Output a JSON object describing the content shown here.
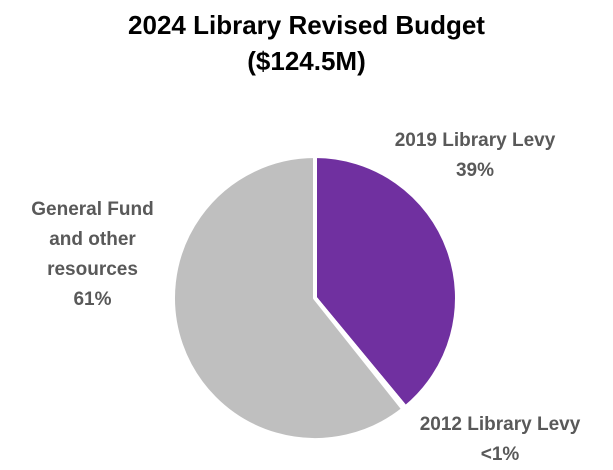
{
  "title": {
    "line1": "2024 Library Revised Budget",
    "line2": "($124.5M)"
  },
  "chart_data": {
    "type": "pie",
    "title": "2024 Library Revised Budget ($124.5M)",
    "slices": [
      {
        "name": "2019 Library Levy",
        "value": 39,
        "label": "39%",
        "color": "#7030A0"
      },
      {
        "name": "2012 Library Levy",
        "value": 0.3,
        "label": "<1%",
        "color": "#7F7F7F"
      },
      {
        "name": "General Fund and other resources",
        "value": 60.7,
        "label": "61%",
        "color": "#BFBFBF"
      }
    ]
  },
  "labels": {
    "levy2019": {
      "line1": "2019 Library Levy",
      "line2": "39%"
    },
    "levy2012": {
      "line1": "2012 Library Levy",
      "line2": "<1%"
    },
    "general": {
      "line1": "General Fund",
      "line2": "and other",
      "line3": "resources",
      "line4": "61%"
    }
  }
}
